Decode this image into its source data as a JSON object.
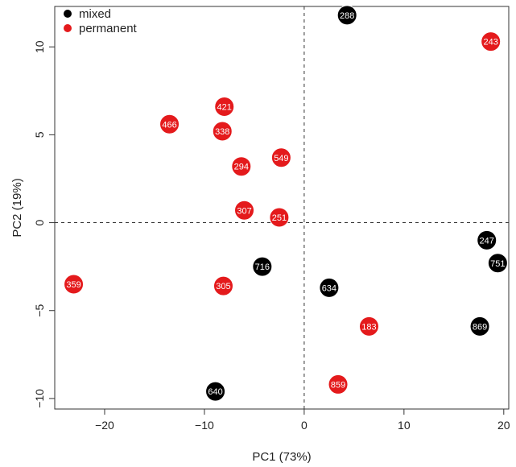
{
  "chart_data": {
    "type": "scatter",
    "xlabel": "PC1 (73%)",
    "ylabel": "PC2 (19%)",
    "xlim": [
      -25,
      20.5
    ],
    "ylim": [
      -10.6,
      12.3
    ],
    "xticks": [
      -20,
      -10,
      0,
      10,
      20
    ],
    "yticks": [
      -10,
      -5,
      0,
      5,
      10
    ],
    "xtick_labels": [
      "−20",
      "−10",
      "0",
      "10",
      "20"
    ],
    "ytick_labels": [
      "−10",
      "−5",
      "0",
      "5",
      "10"
    ],
    "reference_lines": {
      "x": 0,
      "y": 0,
      "style": "dashed"
    },
    "grid": false,
    "legend_position": "top-left",
    "series": [
      {
        "name": "mixed",
        "color": "#000000",
        "points": [
          {
            "label": "288",
            "x": 4.3,
            "y": 11.8
          },
          {
            "label": "247",
            "x": 18.3,
            "y": -1.0
          },
          {
            "label": "751",
            "x": 19.4,
            "y": -2.3
          },
          {
            "label": "716",
            "x": -4.2,
            "y": -2.5
          },
          {
            "label": "634",
            "x": 2.5,
            "y": -3.7
          },
          {
            "label": "869",
            "x": 17.6,
            "y": -5.9
          },
          {
            "label": "640",
            "x": -8.9,
            "y": -9.6
          }
        ]
      },
      {
        "name": "permanent",
        "color": "#e41a1c",
        "points": [
          {
            "label": "243",
            "x": 18.7,
            "y": 10.3
          },
          {
            "label": "421",
            "x": -8.0,
            "y": 6.6
          },
          {
            "label": "466",
            "x": -13.5,
            "y": 5.6
          },
          {
            "label": "338",
            "x": -8.2,
            "y": 5.2
          },
          {
            "label": "549",
            "x": -2.3,
            "y": 3.7
          },
          {
            "label": "294",
            "x": -6.3,
            "y": 3.2
          },
          {
            "label": "307",
            "x": -6.0,
            "y": 0.7
          },
          {
            "label": "251",
            "x": -2.5,
            "y": 0.3
          },
          {
            "label": "359",
            "x": -23.1,
            "y": -3.5
          },
          {
            "label": "305",
            "x": -8.1,
            "y": -3.6
          },
          {
            "label": "183",
            "x": 6.5,
            "y": -5.9
          },
          {
            "label": "859",
            "x": 3.4,
            "y": -9.2
          }
        ]
      }
    ]
  }
}
